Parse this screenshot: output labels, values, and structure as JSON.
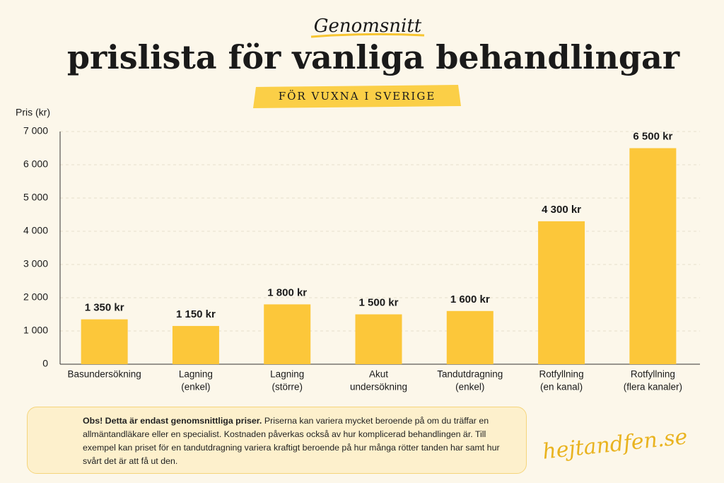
{
  "chart_data": {
    "type": "bar",
    "kicker": "Genomsnitt",
    "title": "prislista för vanliga behandlingar",
    "subtitle": "FÖR VUXNA I SVERIGE",
    "y_label": "Pris (kr)",
    "categories": [
      [
        "Basundersökning"
      ],
      [
        "Lagning",
        "(enkel)"
      ],
      [
        "Lagning",
        "(större)"
      ],
      [
        "Akut",
        "undersökning"
      ],
      [
        "Tandutdragning",
        "(enkel)"
      ],
      [
        "Rotfyllning",
        "(en kanal)"
      ],
      [
        "Rotfyllning",
        "(flera kanaler)"
      ]
    ],
    "values": [
      1350,
      1150,
      1800,
      1500,
      1600,
      4300,
      6500
    ],
    "value_labels": [
      "1 350 kr",
      "1 150 kr",
      "1 800 kr",
      "1 500 kr",
      "1 600 kr",
      "4 300 kr",
      "6 500 kr"
    ],
    "color": "#fcc73a",
    "ylim": [
      0,
      7000
    ],
    "yticks": [
      0,
      {
        "value": 1000,
        "label": "1 000"
      },
      {
        "value": 2000,
        "label": "2 000"
      },
      {
        "value": 3000,
        "label": "3 000"
      },
      {
        "value": 4000,
        "label": "4 000"
      },
      {
        "value": 5000,
        "label": "5 000"
      },
      {
        "value": 6000,
        "label": "6 000"
      },
      {
        "value": 7000,
        "label": "7 000"
      }
    ],
    "grid": true,
    "note": {
      "bold": "Obs! Detta är endast genomsnittliga priser.",
      "text": "Priserna kan variera mycket beroende på om du träffar en allmäntandläkare eller en specialist. Kostnaden påverkas också av hur komplicerad behandlingen är. Till exempel kan priset för en tandutdragning variera kraftigt beroende på hur många rötter tanden har samt hur svårt det är att få ut den."
    },
    "brand": "hejtandfen.se"
  }
}
